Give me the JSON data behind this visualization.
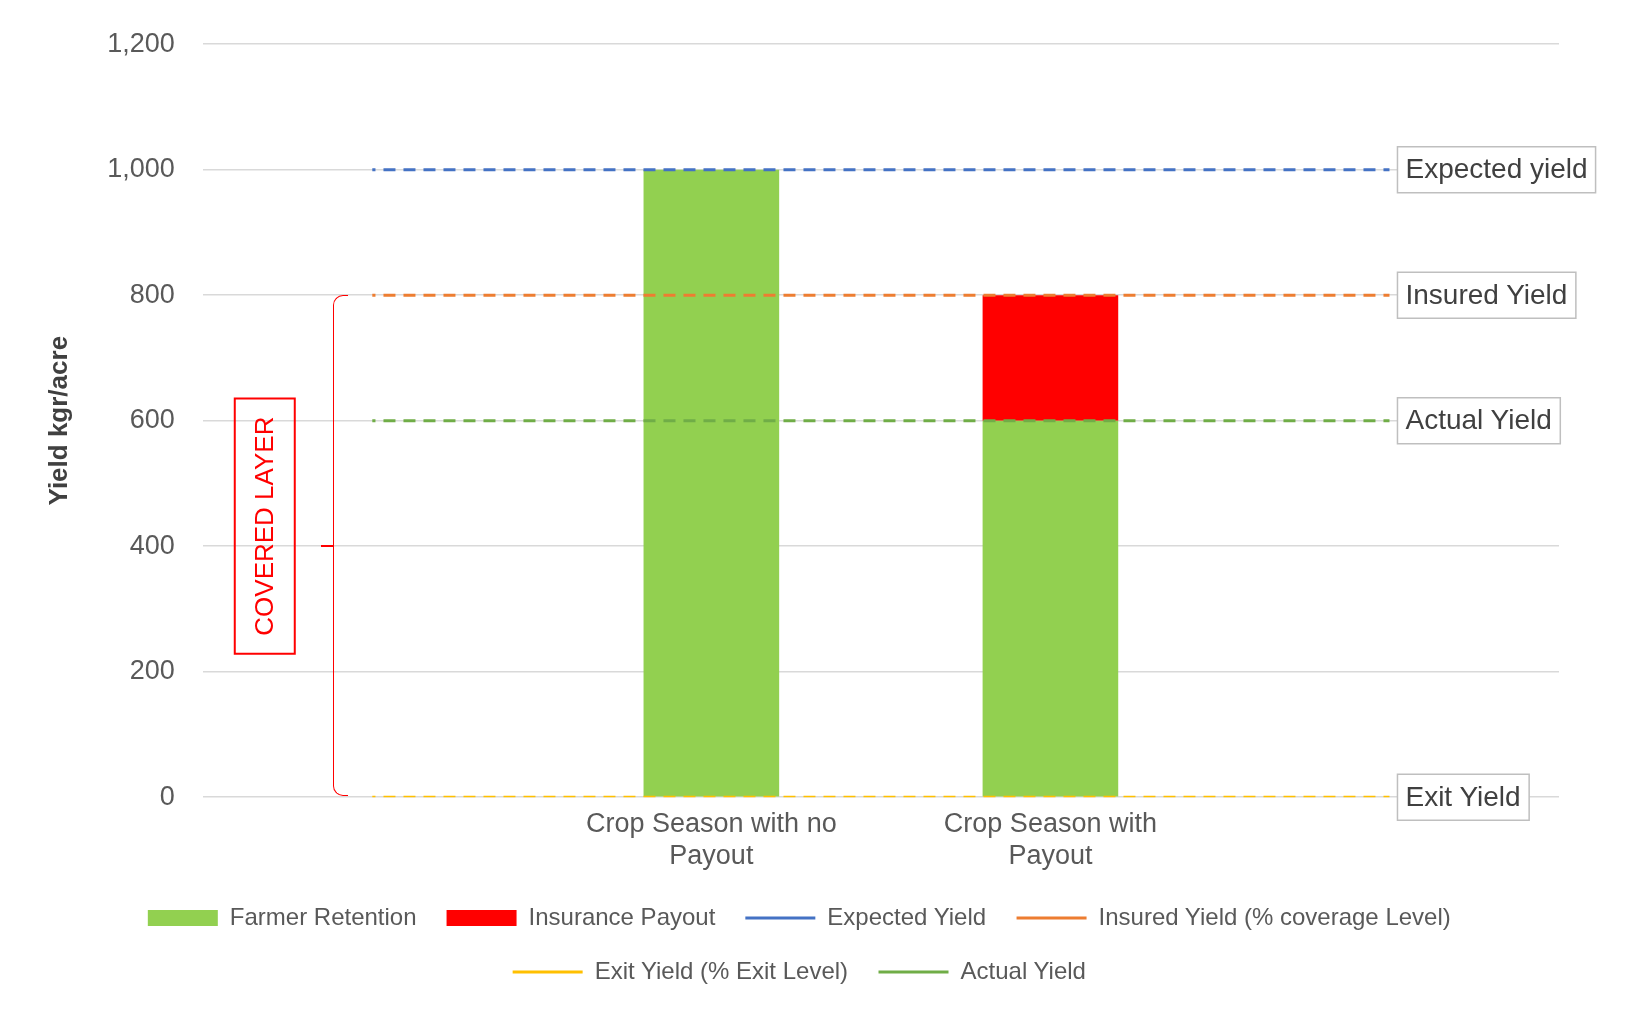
{
  "chart_data": {
    "type": "bar",
    "stacked": true,
    "ylabel": "Yield kgr/acre",
    "categories": [
      null,
      "Crop Season with no Payout",
      "Crop Season with Payout",
      null
    ],
    "series": [
      {
        "name": "Farmer Retention",
        "color": "#92d050",
        "values": [
          null,
          1000,
          600,
          null
        ]
      },
      {
        "name": "Insurance Payout",
        "color": "#ff0000",
        "values": [
          null,
          0,
          200,
          null
        ]
      },
      {
        "name": "Expected Yield",
        "type": "line",
        "line_style": "dashed",
        "color": "#4472c4",
        "values": [
          1000,
          1000,
          1000,
          1000
        ]
      },
      {
        "name": "Insured Yield (% coverage Level)",
        "type": "line",
        "line_style": "dashed",
        "color": "#ed7d31",
        "values": [
          800,
          800,
          800,
          800
        ]
      },
      {
        "name": "Exit Yield (% Exit Level)",
        "type": "line",
        "line_style": "dashed",
        "color": "#ffc000",
        "values": [
          0,
          0,
          0,
          0
        ]
      },
      {
        "name": "Actual Yield",
        "type": "line",
        "line_style": "dashed",
        "color": "#70ad47",
        "values": [
          600,
          600,
          600,
          600
        ]
      }
    ],
    "ylim": [
      0,
      1200
    ],
    "yticks": [
      0,
      200,
      400,
      600,
      800,
      {
        "value": 1000,
        "label": "1,000"
      },
      {
        "value": 1200,
        "label": "1,200"
      }
    ],
    "grid": "y",
    "legend": "bottom",
    "marker": "none",
    "annotations": [
      "Expected yield",
      "Insured Yield",
      "Exit Yield",
      "Actual Yield",
      "COVERED LAYER"
    ]
  }
}
